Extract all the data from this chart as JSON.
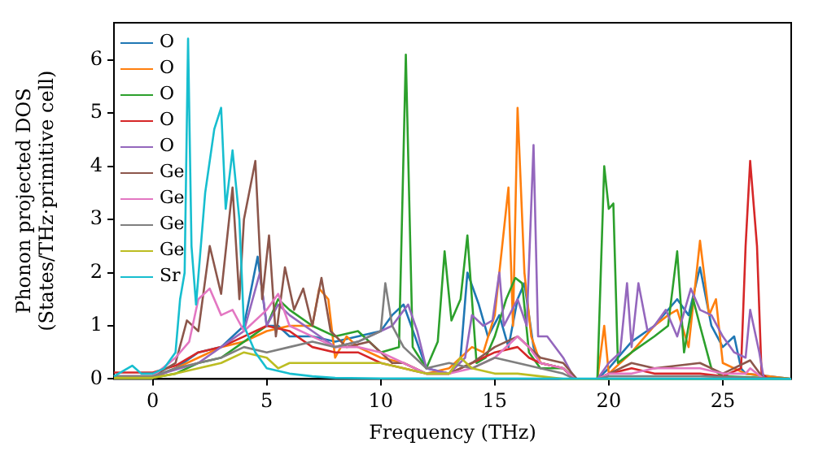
{
  "chart_data": {
    "type": "line",
    "xlabel": "Frequency (THz)",
    "ylabel": "Phonon projected DOS\n(States/THz·primitive cell)",
    "xlim": [
      -1.7,
      28
    ],
    "ylim": [
      0,
      6.7
    ],
    "xticks": [
      0,
      5,
      10,
      15,
      20,
      25
    ],
    "yticks": [
      0,
      1,
      2,
      3,
      4,
      5,
      6
    ],
    "grid": false,
    "legend": "top left",
    "marker": "none",
    "line_style": "solid",
    "series": [
      {
        "name": "O",
        "color": "#1f77b4",
        "x": [
          -1.7,
          0,
          1,
          2,
          3,
          4,
          4.6,
          5,
          5.5,
          6,
          7,
          8,
          9,
          10,
          10.5,
          11,
          11.5,
          12,
          13,
          13.5,
          13.8,
          14.3,
          14.7,
          15.2,
          15.6,
          16,
          16.3,
          16.7,
          17,
          18,
          18.5,
          19.5,
          20,
          21,
          22,
          23,
          23.5,
          24,
          24.5,
          25,
          25.5,
          25.8,
          26,
          28
        ],
        "values": [
          0.02,
          0.02,
          0.2,
          0.5,
          0.6,
          1.0,
          2.3,
          1.0,
          1.0,
          0.8,
          0.8,
          0.7,
          0.8,
          0.9,
          1.2,
          1.4,
          0.8,
          0.2,
          0.1,
          0.4,
          2.0,
          1.4,
          0.8,
          1.2,
          0.6,
          1.5,
          1.8,
          0.6,
          0.3,
          0.2,
          0,
          0,
          0.2,
          0.7,
          1.0,
          1.5,
          1.2,
          2.1,
          1.0,
          0.6,
          0.8,
          0.2,
          0.1,
          0
        ]
      },
      {
        "name": "O",
        "color": "#ff7f0e",
        "x": [
          -1.7,
          0,
          1,
          2,
          3,
          4,
          5,
          6,
          7,
          7.3,
          7.7,
          8,
          8.5,
          9,
          10,
          11,
          12,
          13,
          14,
          14.5,
          15,
          15.6,
          15.8,
          16.0,
          16.3,
          16.6,
          17,
          18,
          18.5,
          19.5,
          19.8,
          20,
          21,
          22,
          22.6,
          23,
          23.5,
          24,
          24.4,
          24.7,
          25,
          26,
          28
        ],
        "values": [
          0.02,
          0.02,
          0.2,
          0.4,
          0.6,
          0.7,
          0.9,
          1.0,
          1.0,
          1.7,
          1.5,
          0.4,
          0.8,
          0.6,
          0.4,
          0.3,
          0.1,
          0.2,
          0.6,
          0.5,
          1.2,
          3.6,
          1.0,
          5.1,
          2.0,
          0.8,
          0.3,
          0.2,
          0,
          0,
          1.0,
          0.1,
          0.5,
          1.0,
          1.2,
          1.3,
          0.6,
          2.6,
          1.2,
          1.5,
          0.3,
          0.1,
          0
        ]
      },
      {
        "name": "O",
        "color": "#2ca02c",
        "x": [
          -1.7,
          0,
          1,
          2,
          3,
          4,
          5,
          5.5,
          6,
          7,
          8,
          9,
          10,
          10.8,
          11.1,
          11.4,
          12,
          12.5,
          12.8,
          13.1,
          13.5,
          13.8,
          14.2,
          14.6,
          15,
          15.5,
          15.9,
          16.2,
          16.5,
          17,
          18,
          18.5,
          19.5,
          19.8,
          20.0,
          20.2,
          20.4,
          21,
          22,
          22.6,
          23,
          23.3,
          23.7,
          24,
          24.5,
          25,
          28
        ],
        "values": [
          0.02,
          0.02,
          0.1,
          0.3,
          0.4,
          0.7,
          1.0,
          1.5,
          1.3,
          1.0,
          0.8,
          0.9,
          0.5,
          0.6,
          6.1,
          0.6,
          0.2,
          0.7,
          2.4,
          1.1,
          1.5,
          2.7,
          0.3,
          0.4,
          0.8,
          1.5,
          1.9,
          1.8,
          0.5,
          0.2,
          0.2,
          0,
          0,
          4.0,
          3.2,
          3.3,
          0.3,
          0.5,
          0.8,
          1.0,
          2.4,
          0.5,
          1.5,
          1.0,
          0.2,
          0.05,
          0
        ]
      },
      {
        "name": "O",
        "color": "#d62728",
        "x": [
          -1.7,
          0,
          1,
          2,
          3,
          4,
          5,
          6,
          7,
          8,
          9,
          10,
          11,
          12,
          13,
          14,
          15,
          16,
          16.5,
          17,
          18,
          18.5,
          19.5,
          20,
          21,
          22,
          23,
          24,
          25,
          25.8,
          26,
          26.2,
          26.5,
          26.7,
          27,
          28
        ],
        "values": [
          0.12,
          0.12,
          0.25,
          0.5,
          0.6,
          0.8,
          1.0,
          0.9,
          0.6,
          0.5,
          0.5,
          0.3,
          0.2,
          0.1,
          0.1,
          0.3,
          0.5,
          0.6,
          0.4,
          0.3,
          0.2,
          0,
          0,
          0.1,
          0.2,
          0.1,
          0.1,
          0.1,
          0.05,
          0.2,
          2.5,
          4.1,
          2.5,
          0.1,
          0,
          0
        ]
      },
      {
        "name": "O",
        "color": "#9467bd",
        "x": [
          -1.7,
          0,
          2,
          3,
          4,
          4.7,
          5,
          5.5,
          6,
          7,
          8,
          9,
          10,
          10.5,
          11.2,
          11.6,
          12,
          13,
          13.7,
          14,
          14.5,
          14.9,
          15.2,
          15.4,
          16,
          16.4,
          16.7,
          16.9,
          17.3,
          18,
          18.5,
          19.5,
          20,
          20.5,
          20.8,
          21,
          21.3,
          21.7,
          22,
          22.5,
          23,
          23.6,
          24,
          24.5,
          25,
          25.5,
          26,
          26.2,
          26.6,
          26.8,
          28
        ],
        "values": [
          0.05,
          0.05,
          0.3,
          0.6,
          0.9,
          2.0,
          1.0,
          1.4,
          1.2,
          0.9,
          0.6,
          0.7,
          0.9,
          1.0,
          1.4,
          0.9,
          0.2,
          0.1,
          0.4,
          1.2,
          1.0,
          1.1,
          2.0,
          1.0,
          1.5,
          1.0,
          4.4,
          0.8,
          0.8,
          0.4,
          0,
          0,
          0.3,
          0.5,
          1.8,
          0.6,
          1.8,
          0.9,
          1.0,
          1.3,
          0.8,
          1.7,
          1.3,
          1.2,
          0.8,
          0.5,
          0.4,
          1.3,
          0.5,
          0,
          0
        ]
      },
      {
        "name": "Ge",
        "color": "#8c564b",
        "x": [
          -1.7,
          0,
          1,
          1.5,
          2,
          2.5,
          3,
          3.5,
          3.8,
          4,
          4.5,
          4.8,
          5.1,
          5.4,
          5.8,
          6.2,
          6.6,
          7,
          7.4,
          7.8,
          8.5,
          9.5,
          10.5,
          11,
          12,
          13,
          14,
          15,
          16,
          17,
          18,
          18.6,
          19.5,
          20,
          21,
          22,
          24,
          25,
          26.2,
          26.8,
          28
        ],
        "values": [
          0.02,
          0.05,
          0.3,
          1.1,
          0.9,
          2.5,
          1.6,
          3.6,
          1.5,
          3.0,
          4.1,
          1.5,
          2.7,
          0.8,
          2.1,
          1.3,
          1.7,
          1.0,
          1.9,
          0.9,
          0.6,
          0.7,
          0.3,
          0.3,
          0.1,
          0.1,
          0.3,
          0.6,
          0.8,
          0.4,
          0.3,
          0,
          0,
          0.1,
          0.3,
          0.2,
          0.3,
          0.1,
          0.35,
          0,
          0
        ]
      },
      {
        "name": "Ge",
        "color": "#e377c2",
        "x": [
          -1.7,
          0,
          1,
          1.6,
          2,
          2.5,
          3,
          3.5,
          4,
          5,
          5.5,
          6,
          7,
          8,
          9,
          10,
          11,
          12,
          13,
          14,
          15,
          16,
          16.5,
          17,
          18,
          18.5,
          19.5,
          20,
          21,
          22,
          23,
          24,
          25,
          26,
          26.2,
          26.8,
          28
        ],
        "values": [
          0.05,
          0.05,
          0.4,
          0.7,
          1.5,
          1.7,
          1.2,
          1.3,
          0.9,
          1.3,
          1.6,
          1.0,
          0.8,
          0.6,
          0.6,
          0.5,
          0.3,
          0.1,
          0.1,
          0.2,
          0.4,
          0.8,
          0.6,
          0.3,
          0.2,
          0,
          0,
          0.1,
          0.1,
          0.2,
          0.2,
          0.2,
          0.1,
          0.1,
          0.2,
          0,
          0
        ]
      },
      {
        "name": "Ge",
        "color": "#7f7f7f",
        "x": [
          -1.7,
          0,
          1,
          2,
          3,
          4,
          5,
          6,
          7,
          8,
          9,
          10,
          10.2,
          10.5,
          11,
          12,
          13,
          14,
          15,
          16,
          17,
          18,
          18.5,
          19.5,
          20,
          22,
          24,
          28
        ],
        "values": [
          0.05,
          0.05,
          0.2,
          0.3,
          0.4,
          0.6,
          0.5,
          0.6,
          0.7,
          0.6,
          0.7,
          0.9,
          1.8,
          1.0,
          0.6,
          0.2,
          0.3,
          0.2,
          0.4,
          0.3,
          0.2,
          0.1,
          0,
          0,
          0.05,
          0.05,
          0.05,
          0
        ]
      },
      {
        "name": "Ge",
        "color": "#bcbd22",
        "x": [
          -1.7,
          0,
          1,
          2,
          3,
          4,
          5,
          5.5,
          6,
          7,
          8,
          9,
          10,
          11,
          12,
          13,
          13.5,
          14,
          15,
          16,
          17,
          18,
          28
        ],
        "values": [
          0.02,
          0.02,
          0.1,
          0.2,
          0.3,
          0.5,
          0.4,
          0.2,
          0.3,
          0.3,
          0.3,
          0.3,
          0.3,
          0.2,
          0.1,
          0.1,
          0.4,
          0.2,
          0.1,
          0.1,
          0.05,
          0,
          0
        ]
      },
      {
        "name": "Sr",
        "color": "#17becf",
        "x": [
          -1.7,
          -0.9,
          -0.5,
          0,
          0.5,
          1,
          1.2,
          1.4,
          1.55,
          1.7,
          1.9,
          2.3,
          2.7,
          3.0,
          3.2,
          3.5,
          3.8,
          4,
          4.5,
          5,
          6,
          7,
          8,
          10,
          28
        ],
        "values": [
          0.05,
          0.25,
          0.1,
          0.1,
          0.2,
          0.5,
          1.5,
          2.0,
          6.4,
          2.5,
          1.4,
          3.5,
          4.7,
          5.1,
          3.2,
          4.3,
          3.0,
          1.0,
          0.5,
          0.2,
          0.1,
          0.05,
          0.02,
          0.01,
          0
        ]
      }
    ]
  }
}
